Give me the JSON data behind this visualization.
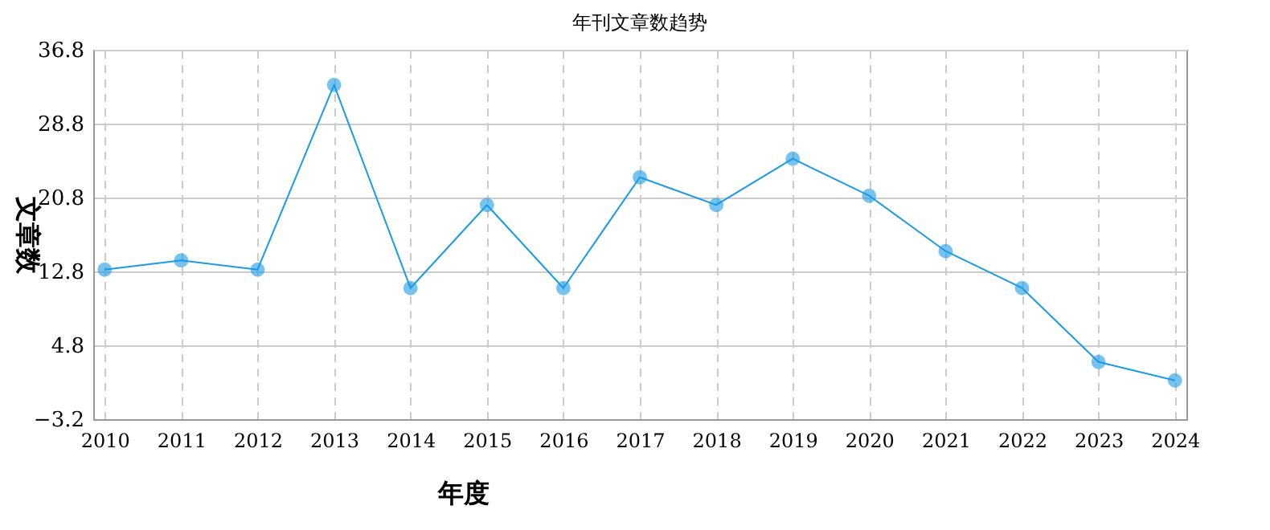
{
  "chart_data": {
    "type": "line",
    "title": "年刊文章数趋势",
    "xlabel": "年度",
    "ylabel": "文章数",
    "categories": [
      "2010",
      "2011",
      "2012",
      "2013",
      "2014",
      "2015",
      "2016",
      "2017",
      "2018",
      "2019",
      "2020",
      "2021",
      "2022",
      "2023",
      "2024"
    ],
    "series": [
      {
        "color": "#1a9be6",
        "values": [
          13,
          14,
          13,
          33,
          11,
          20,
          11,
          23,
          20,
          25,
          21,
          15,
          11,
          3,
          1
        ]
      }
    ],
    "ylim": [
      -3.2,
      36.8
    ],
    "yticks": [
      -3.2,
      4.8,
      12.8,
      20.8,
      28.8,
      36.8
    ],
    "grid": true,
    "marker": "circle",
    "line_style": "solid"
  }
}
